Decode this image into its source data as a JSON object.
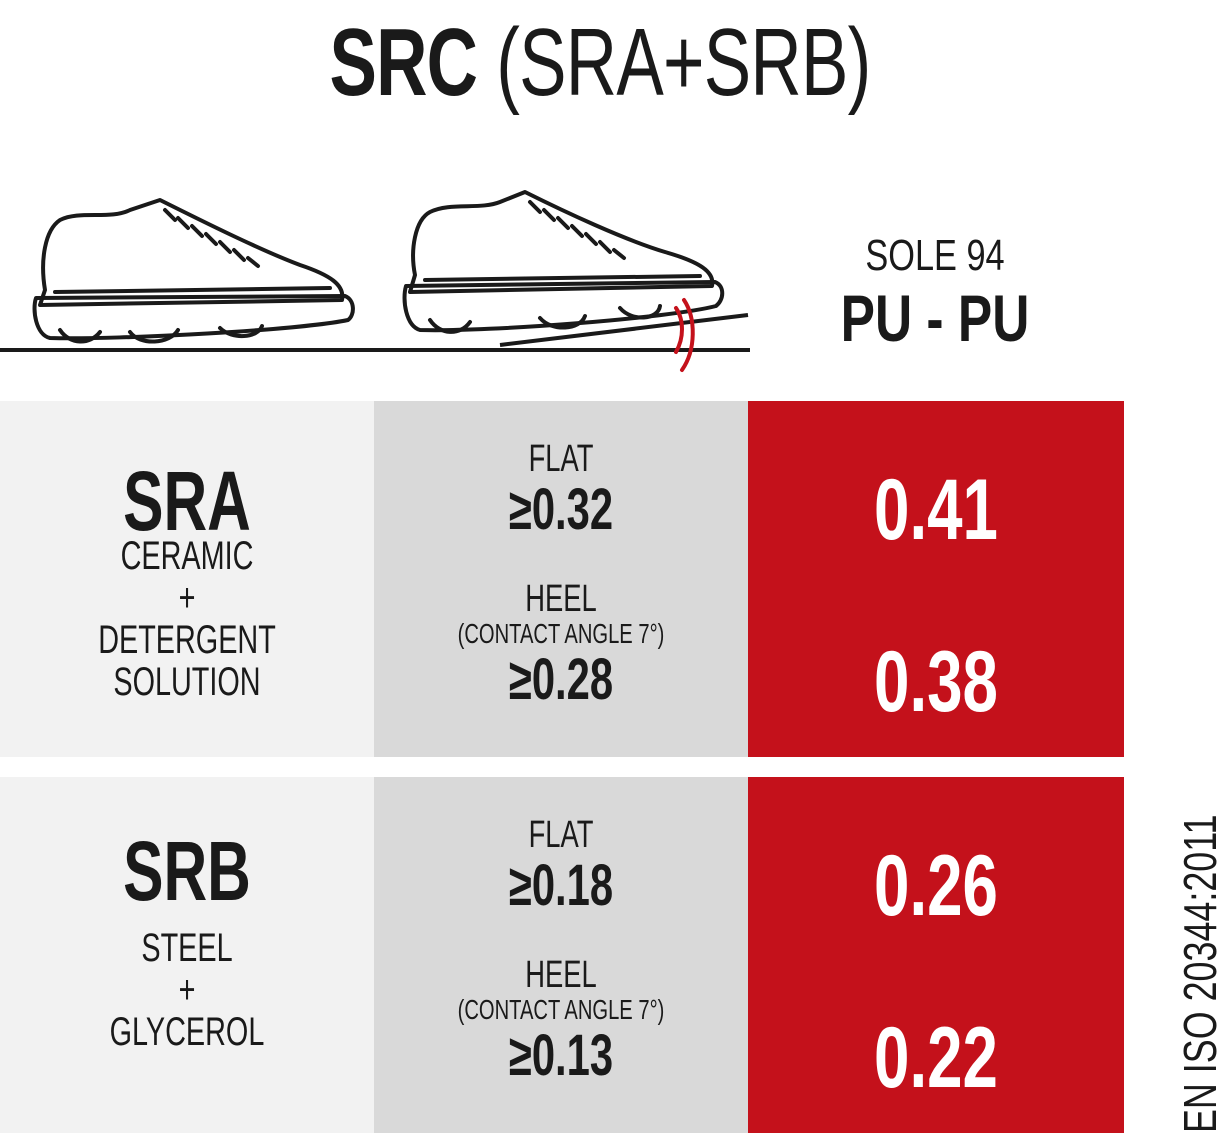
{
  "title": {
    "bold": "SRC",
    "light": "(SRA+SRB)"
  },
  "sole": {
    "label": "SOLE 94",
    "material": "PU - PU"
  },
  "icons": [
    "shoe-flat-icon",
    "shoe-heel-icon",
    "slip-wave-icon"
  ],
  "colors": {
    "accent_red": "#c4111b",
    "light_gray": "#f2f2f2",
    "mid_gray": "#d9d9d9",
    "text": "#1a1a1a"
  },
  "sra": {
    "code": "SRA",
    "desc": [
      "CERAMIC",
      "+",
      "DETERGENT",
      "SOLUTION"
    ],
    "flat_label": "FLAT",
    "flat_req": "≥0.32",
    "heel_label": "HEEL",
    "heel_note": "(CONTACT ANGLE 7°)",
    "heel_req": "≥0.28",
    "flat_result": "0.41",
    "heel_result": "0.38"
  },
  "srb": {
    "code": "SRB",
    "desc": [
      "STEEL",
      "+",
      "GLYCEROL"
    ],
    "flat_label": "FLAT",
    "flat_req": "≥0.18",
    "heel_label": "HEEL",
    "heel_note": "(CONTACT ANGLE 7°)",
    "heel_req": "≥0.13",
    "flat_result": "0.26",
    "heel_result": "0.22"
  },
  "standard": "EN ISO 20344:2011"
}
